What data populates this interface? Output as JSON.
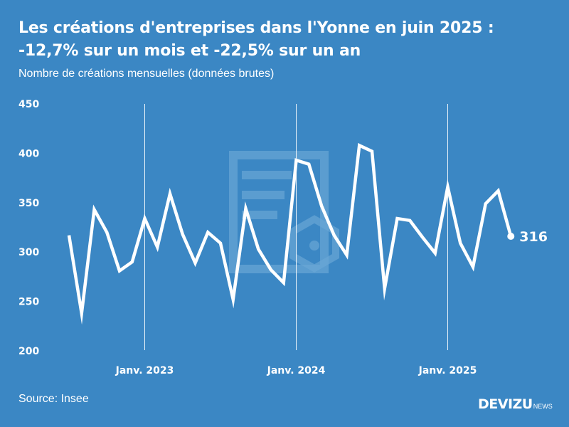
{
  "header": {
    "title_line1": "Les créations d'entreprises dans l'Yonne en juin 2025 :",
    "title_line2": "-12,7% sur un mois et -22,5% sur un an",
    "subtitle": "Nombre de créations mensuelles (données brutes)"
  },
  "footer": {
    "source": "Source: Insee",
    "brand": "DEVIZU",
    "brand_sub": "NEWS"
  },
  "colors": {
    "background": "#3b87c4",
    "line": "#ffffff",
    "watermark": "#6aa6d6"
  },
  "chart_data": {
    "type": "line",
    "title": "Les créations d'entreprises dans l'Yonne en juin 2025 : -12,7% sur un mois et -22,5% sur un an",
    "subtitle": "Nombre de créations mensuelles (données brutes)",
    "ylim": [
      200,
      450
    ],
    "yticks": [
      200,
      250,
      300,
      350,
      400,
      450
    ],
    "ytick_labels": [
      "200",
      "250",
      "300",
      "350",
      "400",
      "450"
    ],
    "xticks": [
      {
        "label": "Janv. 2023",
        "index": 6
      },
      {
        "label": "Janv. 2024",
        "index": 18
      },
      {
        "label": "Janv. 2025",
        "index": 30
      }
    ],
    "x": [
      "2022-07",
      "2022-08",
      "2022-09",
      "2022-10",
      "2022-11",
      "2022-12",
      "2023-01",
      "2023-02",
      "2023-03",
      "2023-04",
      "2023-05",
      "2023-06",
      "2023-07",
      "2023-08",
      "2023-09",
      "2023-10",
      "2023-11",
      "2023-12",
      "2024-01",
      "2024-02",
      "2024-03",
      "2024-04",
      "2024-05",
      "2024-06",
      "2024-07",
      "2024-08",
      "2024-09",
      "2024-10",
      "2024-11",
      "2024-12",
      "2025-01",
      "2025-02",
      "2025-03",
      "2025-04",
      "2025-05",
      "2025-06"
    ],
    "series": [
      {
        "values": [
          317,
          238,
          343,
          320,
          281,
          290,
          334,
          305,
          359,
          318,
          289,
          320,
          309,
          252,
          344,
          303,
          282,
          269,
          393,
          389,
          347,
          317,
          297,
          408,
          402,
          263,
          334,
          332,
          315,
          299,
          366,
          309,
          285,
          349,
          362,
          316
        ]
      }
    ],
    "end_label": "316",
    "grid": false,
    "vertical_gridlines_at_xticks": true
  }
}
